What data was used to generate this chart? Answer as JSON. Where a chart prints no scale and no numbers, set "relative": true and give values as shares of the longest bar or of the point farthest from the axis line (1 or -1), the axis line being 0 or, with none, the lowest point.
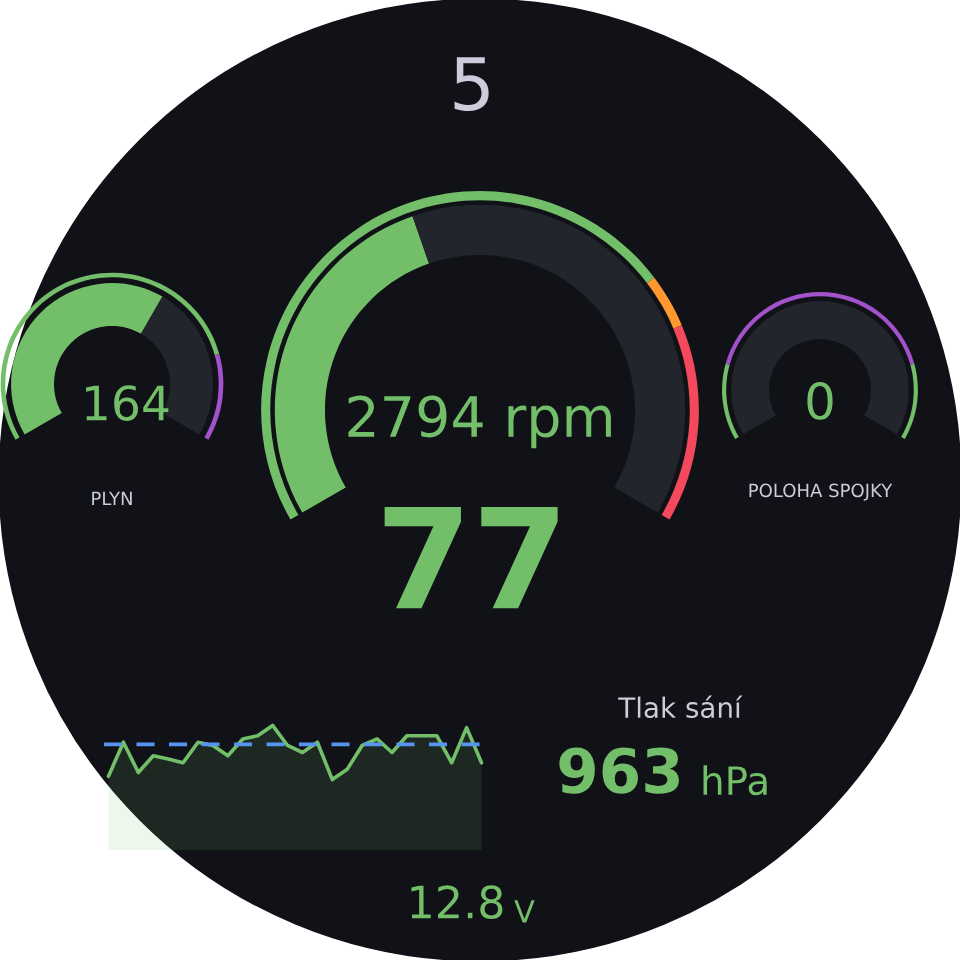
{
  "chart_data": [
    {
      "type": "other",
      "annotations": [
        "5",
        "77",
        "Tlak sání",
        "963",
        "hPa",
        "12.8",
        "V"
      ]
    },
    {
      "type": "donut",
      "title": "PLYN",
      "annotations": [
        "164"
      ],
      "series": [
        {
          "values": [
            62.5,
            37.5
          ],
          "colors": [
            "#73bf69",
            "#22252b"
          ]
        },
        {
          "values": [
            81,
            19
          ],
          "colors": [
            "#73bf69",
            "#a352cc"
          ]
        }
      ]
    },
    {
      "type": "donut",
      "annotations": [
        "2794 rpm"
      ],
      "series": [
        {
          "values": [
            42,
            58
          ],
          "colors": [
            "#73bf69",
            "#22252b"
          ]
        },
        {
          "values": [
            72,
            6,
            22
          ],
          "colors": [
            "#73bf69",
            "#ff9830",
            "#f2495c"
          ]
        }
      ]
    },
    {
      "type": "donut",
      "title": "POLOHA SPOJKY",
      "annotations": [
        "0"
      ],
      "series": [
        {
          "values": [
            0,
            100
          ],
          "colors": [
            "#73bf69",
            "#22252b"
          ]
        },
        {
          "values": [
            19,
            62,
            19
          ],
          "colors": [
            "#73bf69",
            "#a352cc",
            "#73bf69"
          ]
        }
      ]
    },
    {
      "type": "area",
      "relative": true,
      "categories": [
        null,
        null,
        null,
        null,
        null,
        null,
        null,
        null,
        null,
        null,
        null,
        null,
        null,
        null,
        null,
        null,
        null,
        null,
        null,
        null,
        null,
        null,
        null,
        null,
        null,
        null
      ],
      "series": [
        {
          "color": "#73bf69",
          "values": [
            0.06,
            0.69,
            0.13,
            0.44,
            0.38,
            0.31,
            0.69,
            0.63,
            0.44,
            0.75,
            0.81,
            1,
            0.63,
            0.5,
            0.69,
            0,
            0.19,
            0.63,
            0.75,
            0.5,
            0.81,
            0.81,
            0.81,
            0.31,
            0.96,
            0.31
          ]
        }
      ],
      "ref_lines": [
        {
          "axis": "y",
          "value": 0.65,
          "color": "#5794f2",
          "line_style": "dashed"
        }
      ]
    }
  ]
}
